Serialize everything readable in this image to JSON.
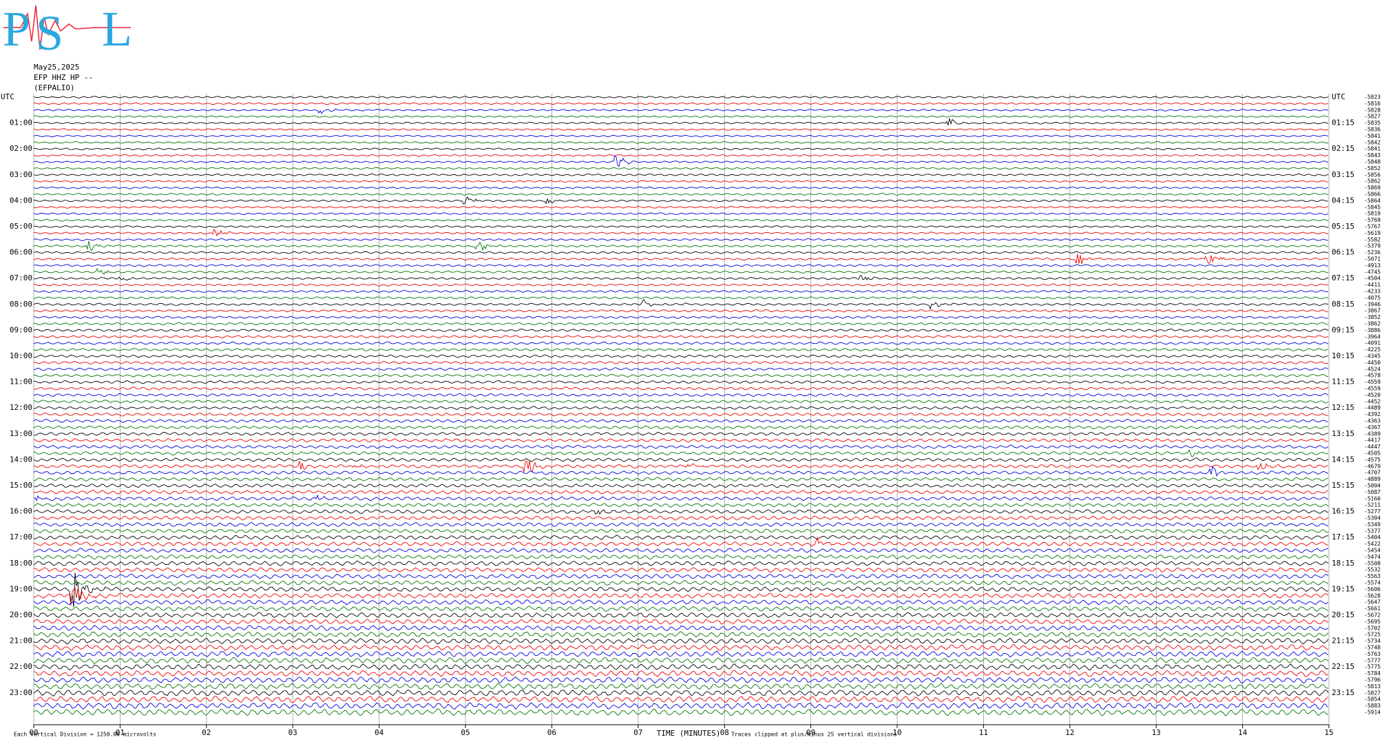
{
  "logo": {
    "letters": [
      "P",
      "S",
      "L"
    ]
  },
  "header": {
    "date": "May25,2025",
    "channel": "EFP HHZ HP --",
    "station": "(EFPALIO)"
  },
  "left_labels": [
    "UTC",
    "01:00",
    "02:00",
    "03:00",
    "04:00",
    "05:00",
    "06:00",
    "07:00",
    "08:00",
    "09:00",
    "10:00",
    "11:00",
    "12:00",
    "13:00",
    "14:00",
    "15:00",
    "16:00",
    "17:00",
    "18:00",
    "19:00",
    "20:00",
    "21:00",
    "22:00",
    "23:00"
  ],
  "right_labels": [
    "UTC",
    "01:15",
    "02:15",
    "03:15",
    "04:15",
    "05:15",
    "06:15",
    "07:15",
    "08:15",
    "09:15",
    "10:15",
    "11:15",
    "12:15",
    "13:15",
    "14:15",
    "15:15",
    "16:15",
    "17:15",
    "18:15",
    "19:15",
    "20:15",
    "21:15",
    "22:15",
    "23:15"
  ],
  "trace_offsets": [
    -5823,
    -5816,
    -5828,
    -5827,
    -5835,
    -5836,
    -5841,
    -5842,
    -5841,
    -5843,
    -5848,
    -5852,
    -5856,
    -5862,
    -5869,
    -5866,
    -5864,
    -5845,
    -5819,
    -5769,
    -5767,
    -5619,
    -5582,
    -5379,
    -5236,
    -5071,
    -4913,
    -4745,
    -4504,
    -4411,
    -4233,
    -4075,
    -3946,
    -3867,
    -3852,
    -3862,
    -3886,
    -3964,
    -4091,
    -4225,
    -4345,
    -4450,
    -4524,
    -4578,
    -4559,
    -4559,
    -4520,
    -4452,
    -4489,
    -4392,
    -4363,
    -4367,
    -4389,
    -4417,
    -4447,
    -4505,
    -4575,
    -4679,
    -4707,
    -4889,
    -5004,
    -5087,
    -5160,
    -5211,
    -5277,
    -5304,
    -5349,
    -5377,
    -5404,
    -5422,
    -5454,
    -5474,
    -5508,
    -5532,
    -5563,
    -5574,
    -5606,
    -5628,
    -5647,
    -5661,
    -5672,
    -5695,
    -5702,
    -5725,
    -5734,
    -5748,
    -5763,
    -5777,
    -5775,
    -5784,
    -5796,
    -5813,
    -5827,
    -5854,
    -5883,
    -5914
  ],
  "x_ticks": [
    "00",
    "01",
    "02",
    "03",
    "04",
    "05",
    "06",
    "07",
    "08",
    "09",
    "10",
    "11",
    "12",
    "13",
    "14",
    "15"
  ],
  "footer": {
    "scale_note": "Each Vertical Division = 1250.00 microvolts",
    "x_title": "TIME (MINUTES)",
    "clip_note": "Traces clipped at plus/minus 25 vertical divisions"
  }
}
